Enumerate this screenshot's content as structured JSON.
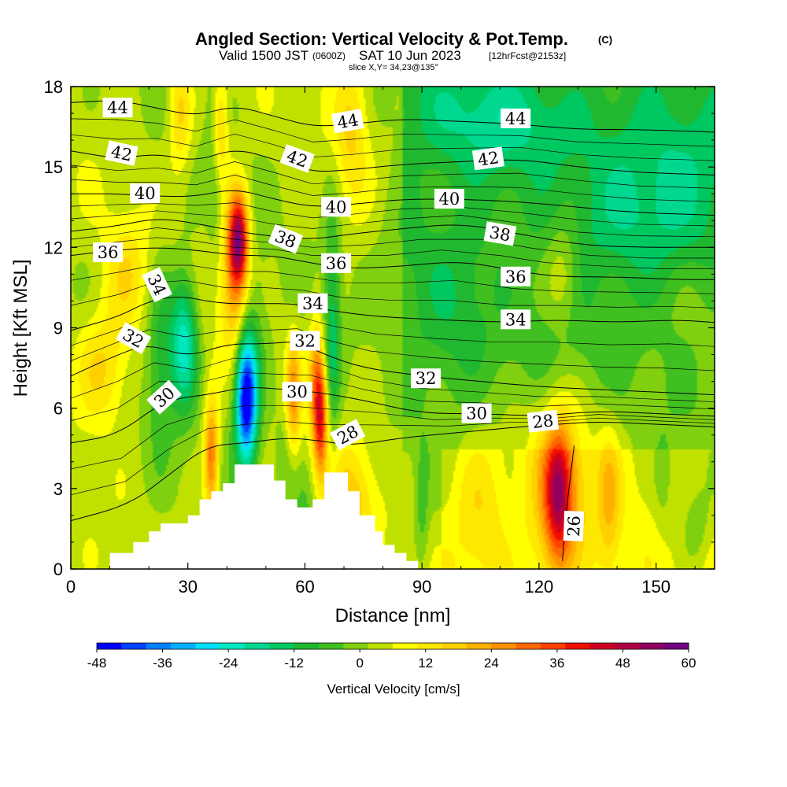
{
  "title": {
    "main": "Angled Section: Vertical Velocity & Pot.Temp.",
    "copyright": "(C)",
    "valid_a": "Valid 1500 JST",
    "valid_b": "(0600Z)",
    "valid_c": "SAT 10 Jun 2023",
    "valid_d": "[12hrFcst@2153z]",
    "slice": "slice X,Y= 34,23@135°"
  },
  "chart_data": {
    "type": "heatmap",
    "xlabel": "Distance [nm]",
    "ylabel": "Height [Kft MSL]",
    "xlim": [
      0,
      165
    ],
    "ylim": [
      0,
      18
    ],
    "xticks": [
      0,
      30,
      60,
      90,
      120,
      150
    ],
    "yticks": [
      0,
      3,
      6,
      9,
      12,
      15,
      18
    ],
    "field_label": "Vertical Velocity [cm/s]",
    "colorbar": {
      "ticks": [
        -48,
        -36,
        -24,
        -12,
        0,
        12,
        24,
        36,
        48,
        60
      ],
      "colors": [
        "#0000ff",
        "#0040ff",
        "#0080ff",
        "#00b0ff",
        "#00e0ff",
        "#00e8c0",
        "#00d890",
        "#00c860",
        "#20b830",
        "#40c020",
        "#80d010",
        "#c0e000",
        "#ffff00",
        "#ffe800",
        "#ffd000",
        "#ffb000",
        "#ff9000",
        "#ff6800",
        "#ff4000",
        "#f01000",
        "#d00020",
        "#b00040",
        "#900060",
        "#700080"
      ]
    },
    "terrain": [
      [
        0,
        0
      ],
      [
        10,
        0
      ],
      [
        10,
        0.6
      ],
      [
        16,
        0.6
      ],
      [
        16,
        1
      ],
      [
        20,
        1
      ],
      [
        20,
        1.4
      ],
      [
        23,
        1.4
      ],
      [
        23,
        1.7
      ],
      [
        30,
        1.7
      ],
      [
        30,
        2
      ],
      [
        33,
        2
      ],
      [
        33,
        2.6
      ],
      [
        36,
        2.6
      ],
      [
        36,
        2.9
      ],
      [
        39,
        2.9
      ],
      [
        39,
        3.2
      ],
      [
        42,
        3.2
      ],
      [
        42,
        3.9
      ],
      [
        52,
        3.9
      ],
      [
        52,
        3.3
      ],
      [
        55,
        3.3
      ],
      [
        55,
        2.6
      ],
      [
        58,
        2.6
      ],
      [
        58,
        2.3
      ],
      [
        62,
        2.3
      ],
      [
        62,
        2.6
      ],
      [
        65,
        2.6
      ],
      [
        65,
        3.6
      ],
      [
        71,
        3.6
      ],
      [
        71,
        2.9
      ],
      [
        74,
        2.9
      ],
      [
        74,
        2
      ],
      [
        78,
        2
      ],
      [
        78,
        1.4
      ],
      [
        80,
        1.4
      ],
      [
        80,
        0.9
      ],
      [
        83,
        0.9
      ],
      [
        83,
        0.6
      ],
      [
        86,
        0.6
      ],
      [
        86,
        0.3
      ],
      [
        89,
        0.3
      ],
      [
        89,
        0
      ],
      [
        165,
        0
      ]
    ],
    "theta_contours": [
      {
        "level": 26,
        "points": [
          [
            126,
            0.3
          ],
          [
            127,
            2.2
          ],
          [
            129,
            4.6
          ]
        ]
      },
      {
        "level": 28,
        "points": [
          [
            0,
            1.8
          ],
          [
            15,
            2.4
          ],
          [
            25,
            3.5
          ],
          [
            35,
            4.6
          ],
          [
            45,
            4.7
          ],
          [
            55,
            4.9
          ],
          [
            63,
            4.8
          ],
          [
            72,
            4.6
          ],
          [
            85,
            4.9
          ],
          [
            100,
            5.1
          ],
          [
            115,
            5.3
          ],
          [
            125,
            5.4
          ],
          [
            135,
            5.5
          ],
          [
            150,
            5.4
          ],
          [
            165,
            5.3
          ]
        ]
      },
      {
        "level": 30,
        "points": [
          [
            0,
            4.7
          ],
          [
            12,
            5.0
          ],
          [
            24,
            6.3
          ],
          [
            35,
            6.5
          ],
          [
            45,
            6.8
          ],
          [
            55,
            6.7
          ],
          [
            63,
            6.6
          ],
          [
            75,
            6.3
          ],
          [
            90,
            5.8
          ],
          [
            105,
            5.8
          ],
          [
            120,
            5.7
          ],
          [
            135,
            5.9
          ],
          [
            150,
            5.8
          ],
          [
            165,
            5.7
          ]
        ]
      },
      {
        "level": 32,
        "points": [
          [
            0,
            7.2
          ],
          [
            12,
            8.0
          ],
          [
            20,
            8.4
          ],
          [
            30,
            7.9
          ],
          [
            40,
            8.4
          ],
          [
            50,
            8.4
          ],
          [
            58,
            8.5
          ],
          [
            65,
            8.0
          ],
          [
            75,
            7.5
          ],
          [
            90,
            7.2
          ],
          [
            105,
            7.0
          ],
          [
            120,
            6.8
          ],
          [
            135,
            6.7
          ],
          [
            150,
            6.6
          ],
          [
            165,
            6.5
          ]
        ]
      },
      {
        "level": 34,
        "points": [
          [
            0,
            8.9
          ],
          [
            12,
            9.4
          ],
          [
            20,
            10.0
          ],
          [
            28,
            10.2
          ],
          [
            38,
            9.9
          ],
          [
            48,
            9.9
          ],
          [
            58,
            9.9
          ],
          [
            68,
            9.6
          ],
          [
            80,
            9.4
          ],
          [
            95,
            9.3
          ],
          [
            110,
            9.2
          ],
          [
            125,
            9.3
          ],
          [
            140,
            9.2
          ],
          [
            155,
            9.3
          ],
          [
            165,
            9.2
          ]
        ]
      },
      {
        "level": 36,
        "points": [
          [
            0,
            11.7
          ],
          [
            12,
            11.9
          ],
          [
            22,
            12.0
          ],
          [
            32,
            11.9
          ],
          [
            42,
            11.7
          ],
          [
            52,
            11.7
          ],
          [
            62,
            11.4
          ],
          [
            72,
            11.2
          ],
          [
            85,
            11.3
          ],
          [
            100,
            11.5
          ],
          [
            115,
            11.1
          ],
          [
            125,
            10.9
          ],
          [
            140,
            10.9
          ],
          [
            155,
            10.8
          ],
          [
            165,
            10.8
          ]
        ]
      },
      {
        "level": 38,
        "points": [
          [
            0,
            12.6
          ],
          [
            12,
            12.8
          ],
          [
            22,
            13.1
          ],
          [
            32,
            12.9
          ],
          [
            42,
            12.6
          ],
          [
            52,
            12.4
          ],
          [
            62,
            12.3
          ],
          [
            72,
            12.5
          ],
          [
            85,
            12.7
          ],
          [
            100,
            12.9
          ],
          [
            115,
            12.5
          ],
          [
            130,
            12.1
          ],
          [
            145,
            12.0
          ],
          [
            165,
            12.0
          ]
        ]
      },
      {
        "level": 40,
        "points": [
          [
            0,
            14.0
          ],
          [
            12,
            14.0
          ],
          [
            22,
            13.9
          ],
          [
            32,
            13.9
          ],
          [
            42,
            14.2
          ],
          [
            52,
            13.8
          ],
          [
            62,
            13.5
          ],
          [
            72,
            13.6
          ],
          [
            85,
            13.8
          ],
          [
            100,
            13.8
          ],
          [
            115,
            13.7
          ],
          [
            130,
            13.5
          ],
          [
            145,
            13.3
          ],
          [
            165,
            13.2
          ]
        ]
      },
      {
        "level": 42,
        "points": [
          [
            0,
            15.6
          ],
          [
            12,
            15.3
          ],
          [
            22,
            15.5
          ],
          [
            32,
            15.2
          ],
          [
            42,
            15.7
          ],
          [
            52,
            15.3
          ],
          [
            62,
            14.8
          ],
          [
            72,
            14.9
          ],
          [
            85,
            15.1
          ],
          [
            100,
            15.2
          ],
          [
            115,
            15.3
          ],
          [
            130,
            15.0
          ],
          [
            145,
            14.8
          ],
          [
            165,
            14.7
          ]
        ]
      },
      {
        "level": 44,
        "points": [
          [
            0,
            17.4
          ],
          [
            12,
            17.5
          ],
          [
            22,
            17.2
          ],
          [
            32,
            16.9
          ],
          [
            42,
            17.3
          ],
          [
            52,
            16.9
          ],
          [
            62,
            16.5
          ],
          [
            72,
            16.6
          ],
          [
            85,
            16.8
          ],
          [
            100,
            16.7
          ],
          [
            115,
            16.6
          ],
          [
            130,
            16.4
          ],
          [
            145,
            16.4
          ],
          [
            165,
            16.3
          ]
        ]
      }
    ],
    "contour_labels": [
      {
        "text": "44",
        "x": 12,
        "y": 17.2,
        "angle": 0
      },
      {
        "text": "44",
        "x": 71,
        "y": 16.7,
        "angle": -10
      },
      {
        "text": "44",
        "x": 114,
        "y": 16.8,
        "angle": 0
      },
      {
        "text": "42",
        "x": 13,
        "y": 15.5,
        "angle": 12
      },
      {
        "text": "42",
        "x": 58,
        "y": 15.3,
        "angle": 20
      },
      {
        "text": "42",
        "x": 107,
        "y": 15.3,
        "angle": -8
      },
      {
        "text": "40",
        "x": 19,
        "y": 14.0,
        "angle": 0
      },
      {
        "text": "40",
        "x": 68,
        "y": 13.5,
        "angle": 0
      },
      {
        "text": "40",
        "x": 97,
        "y": 13.8,
        "angle": 0
      },
      {
        "text": "38",
        "x": 55,
        "y": 12.3,
        "angle": 22
      },
      {
        "text": "38",
        "x": 110,
        "y": 12.5,
        "angle": 10
      },
      {
        "text": "36",
        "x": 9.5,
        "y": 11.8,
        "angle": 0
      },
      {
        "text": "36",
        "x": 68,
        "y": 11.4,
        "angle": 0
      },
      {
        "text": "36",
        "x": 114,
        "y": 10.9,
        "angle": 0
      },
      {
        "text": "34",
        "x": 22,
        "y": 10.6,
        "angle": 65
      },
      {
        "text": "34",
        "x": 62,
        "y": 9.9,
        "angle": 0
      },
      {
        "text": "34",
        "x": 114,
        "y": 9.3,
        "angle": 0
      },
      {
        "text": "32",
        "x": 16,
        "y": 8.6,
        "angle": 30
      },
      {
        "text": "32",
        "x": 60,
        "y": 8.5,
        "angle": 0
      },
      {
        "text": "32",
        "x": 91,
        "y": 7.1,
        "angle": 0
      },
      {
        "text": "30",
        "x": 24,
        "y": 6.4,
        "angle": -42
      },
      {
        "text": "30",
        "x": 58,
        "y": 6.6,
        "angle": 0
      },
      {
        "text": "30",
        "x": 104,
        "y": 5.8,
        "angle": 0
      },
      {
        "text": "28",
        "x": 71,
        "y": 5.0,
        "angle": -28
      },
      {
        "text": "28",
        "x": 121,
        "y": 5.5,
        "angle": -6
      },
      {
        "text": "26",
        "x": 129,
        "y": 1.6,
        "angle": -88
      }
    ],
    "velocity_features": [
      {
        "x": 45,
        "y": 6.3,
        "sx": 1.8,
        "sy": 1.6,
        "v": -45
      },
      {
        "x": 45,
        "y": 7.5,
        "sx": 3.5,
        "sy": 2.5,
        "v": -15
      },
      {
        "x": 29,
        "y": 8.5,
        "sx": 2.5,
        "sy": 1.8,
        "v": -27
      },
      {
        "x": 23,
        "y": 8.0,
        "sx": 2.5,
        "sy": 2.5,
        "v": -12
      },
      {
        "x": 67,
        "y": 9.0,
        "sx": 1.5,
        "sy": 3.0,
        "v": -16
      },
      {
        "x": 55,
        "y": 4.0,
        "sx": 2.0,
        "sy": 1.8,
        "v": -6
      },
      {
        "x": 60,
        "y": 1.5,
        "sx": 2.0,
        "sy": 1.5,
        "v": -8
      },
      {
        "x": 37,
        "y": 16.0,
        "sx": 1.5,
        "sy": 2.5,
        "v": -10
      },
      {
        "x": 43,
        "y": 12.3,
        "sx": 1.7,
        "sy": 1.2,
        "v": 42
      },
      {
        "x": 42,
        "y": 10.5,
        "sx": 2.5,
        "sy": 2.2,
        "v": 24
      },
      {
        "x": 36,
        "y": 4.2,
        "sx": 1.3,
        "sy": 1.5,
        "v": 28
      },
      {
        "x": 64,
        "y": 5.5,
        "sx": 1.3,
        "sy": 1.4,
        "v": 32
      },
      {
        "x": 57,
        "y": 6.5,
        "sx": 1.3,
        "sy": 1.5,
        "v": 22
      },
      {
        "x": 63,
        "y": 7.2,
        "sx": 1.5,
        "sy": 1.5,
        "v": 20
      },
      {
        "x": 125,
        "y": 2.8,
        "sx": 2.5,
        "sy": 1.8,
        "v": 32
      },
      {
        "x": 125,
        "y": 2.8,
        "sx": 6.0,
        "sy": 2.5,
        "v": 16
      },
      {
        "x": 138,
        "y": 2.5,
        "sx": 2.0,
        "sy": 2.0,
        "v": 12
      },
      {
        "x": 105,
        "y": 2.3,
        "sx": 5.0,
        "sy": 2.0,
        "v": 10
      },
      {
        "x": 72,
        "y": 2.5,
        "sx": 4.0,
        "sy": 1.5,
        "v": 14
      },
      {
        "x": 28,
        "y": 17.0,
        "sx": 2.0,
        "sy": 1.5,
        "v": 14
      },
      {
        "x": 38,
        "y": 16.5,
        "sx": 1.5,
        "sy": 1.5,
        "v": 20
      },
      {
        "x": 72,
        "y": 16.5,
        "sx": 3.0,
        "sy": 2.0,
        "v": 12
      },
      {
        "x": 8,
        "y": 7.5,
        "sx": 5.0,
        "sy": 1.5,
        "v": 14
      },
      {
        "x": 14,
        "y": 11.0,
        "sx": 4.0,
        "sy": 1.5,
        "v": 10
      },
      {
        "x": 126,
        "y": 11.2,
        "sx": 3.0,
        "sy": 1.5,
        "v": 10
      },
      {
        "x": 110,
        "y": 16.8,
        "sx": 15.0,
        "sy": 1.5,
        "v": -13
      },
      {
        "x": 150,
        "y": 15.0,
        "sx": 15.0,
        "sy": 1.8,
        "v": -12
      },
      {
        "x": 150,
        "y": 12.5,
        "sx": 15.0,
        "sy": 1.5,
        "v": -10
      },
      {
        "x": 98,
        "y": 10.3,
        "sx": 8.0,
        "sy": 2.0,
        "v": -11
      },
      {
        "x": 120,
        "y": 8.0,
        "sx": 15.0,
        "sy": 1.5,
        "v": -6
      },
      {
        "x": 85,
        "y": 12.5,
        "sx": 5.0,
        "sy": 1.5,
        "v": -6
      },
      {
        "x": 90,
        "y": 2.2,
        "sx": 1.2,
        "sy": 1.5,
        "v": -8
      },
      {
        "x": 160,
        "y": 1.5,
        "sx": 3.0,
        "sy": 1.2,
        "v": -8
      },
      {
        "x": 152,
        "y": 3.0,
        "sx": 2.0,
        "sy": 1.5,
        "v": -6
      }
    ]
  }
}
